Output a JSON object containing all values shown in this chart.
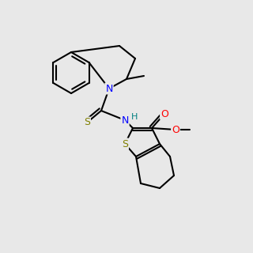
{
  "bg": "#e8e8e8",
  "bond_color": "#000000",
  "N_color": "#0000ff",
  "S_color": "#808000",
  "O_color": "#ff0000",
  "H_color": "#008080",
  "lw": 1.5,
  "fs": 8
}
